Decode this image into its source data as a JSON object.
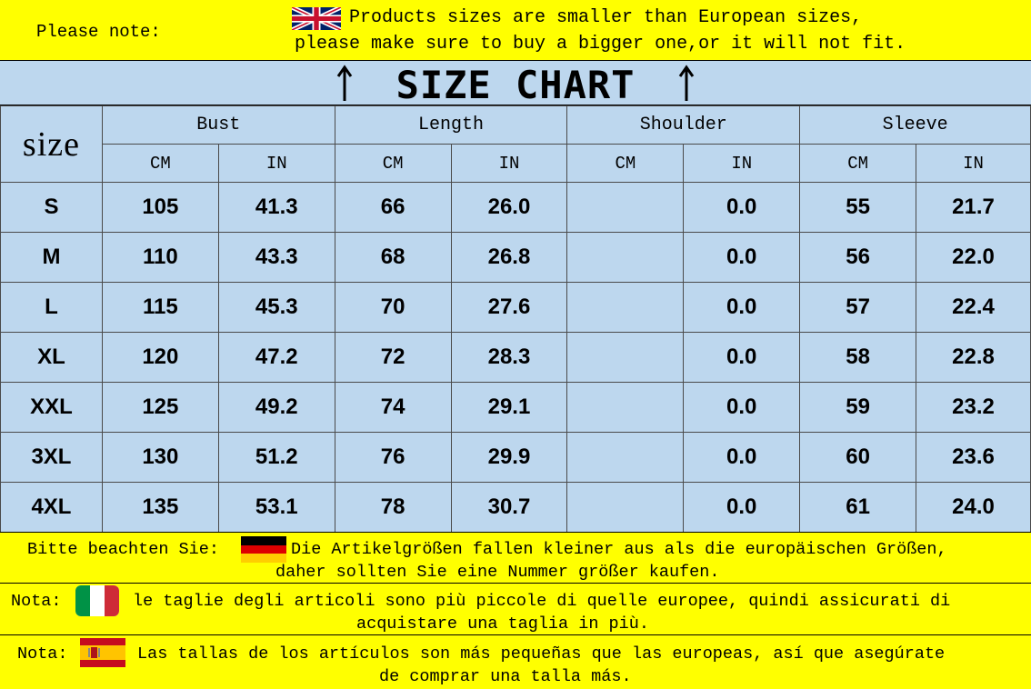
{
  "top_note": {
    "label": "Please note:",
    "line1": "Products sizes are smaller than European sizes,",
    "line2": "please make sure to buy a bigger one,or it will not fit.",
    "flag_icon": "uk-flag-icon"
  },
  "title": "SIZE CHART",
  "table": {
    "size_header": "size",
    "groups": [
      "Bust",
      "Length",
      "Shoulder",
      "Sleeve"
    ],
    "units": [
      "CM",
      "IN",
      "CM",
      "IN",
      "CM",
      "IN",
      "CM",
      "IN"
    ],
    "rows": [
      {
        "size": "S",
        "cells": [
          "105",
          "41.3",
          "66",
          "26.0",
          "",
          "0.0",
          "55",
          "21.7"
        ]
      },
      {
        "size": "M",
        "cells": [
          "110",
          "43.3",
          "68",
          "26.8",
          "",
          "0.0",
          "56",
          "22.0"
        ]
      },
      {
        "size": "L",
        "cells": [
          "115",
          "45.3",
          "70",
          "27.6",
          "",
          "0.0",
          "57",
          "22.4"
        ]
      },
      {
        "size": "XL",
        "cells": [
          "120",
          "47.2",
          "72",
          "28.3",
          "",
          "0.0",
          "58",
          "22.8"
        ]
      },
      {
        "size": "XXL",
        "cells": [
          "125",
          "49.2",
          "74",
          "29.1",
          "",
          "0.0",
          "59",
          "23.2"
        ]
      },
      {
        "size": "3XL",
        "cells": [
          "130",
          "51.2",
          "76",
          "29.9",
          "",
          "0.0",
          "60",
          "23.6"
        ]
      },
      {
        "size": "4XL",
        "cells": [
          "135",
          "53.1",
          "78",
          "30.7",
          "",
          "0.0",
          "61",
          "24.0"
        ]
      }
    ]
  },
  "notes": {
    "german": {
      "label": "Bitte beachten Sie:",
      "line1": "Die Artikelgrößen fallen kleiner aus als die europäischen Größen,",
      "line2": "daher sollten Sie eine Nummer größer kaufen.",
      "flag_icon": "german-flag-icon"
    },
    "italian": {
      "label": "Nota:",
      "line1": "le taglie degli articoli sono più piccole di quelle europee, quindi assicurati di",
      "line2": "acquistare una taglia in più.",
      "flag_icon": "italian-flag-icon"
    },
    "spanish": {
      "label": "Nota:",
      "line1": "Las tallas de los artículos son más pequeñas que las europeas, así que asegúrate",
      "line2": "de comprar una talla más.",
      "flag_icon": "spanish-flag-icon"
    }
  },
  "colors": {
    "note_background": "#ffff00",
    "table_background": "#bdd7ee"
  }
}
